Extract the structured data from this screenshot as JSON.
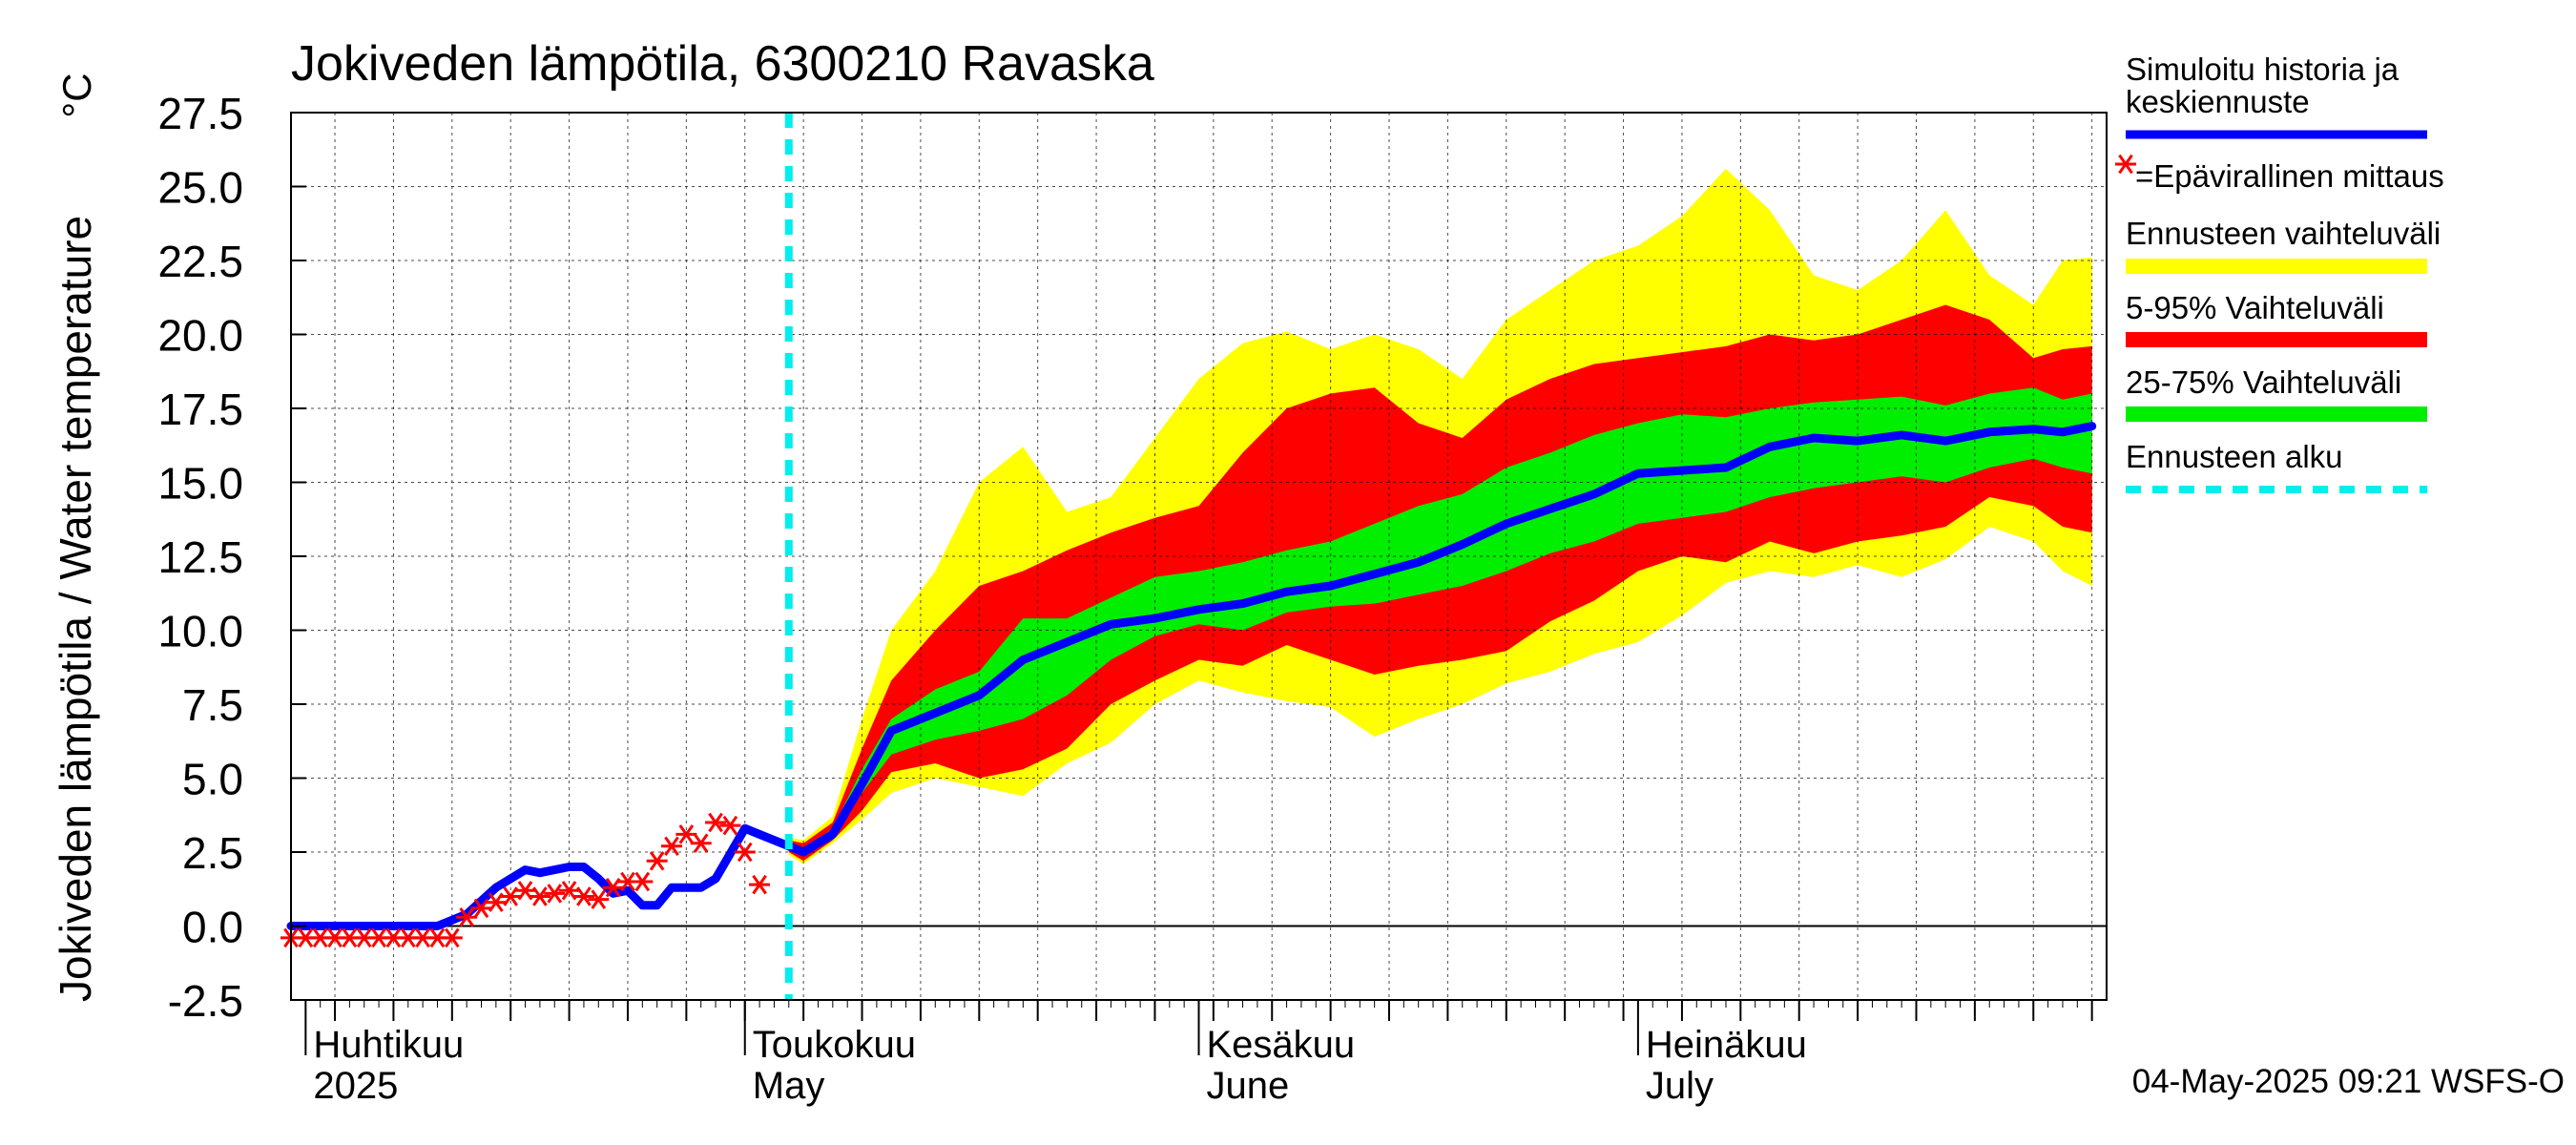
{
  "title": "Jokiveden lämpötila, 6300210 Ravaska",
  "ylabel": "Jokiveden lämpötila / Water temperature",
  "yunit": "°C",
  "timestamp": "04-May-2025 09:21 WSFS-O",
  "months": [
    {
      "fi": "Huhtikuu",
      "en": "2025",
      "date": "2025-04-01"
    },
    {
      "fi": "Toukokuu",
      "en": "May",
      "date": "2025-05-01"
    },
    {
      "fi": "Kesäkuu",
      "en": "June",
      "date": "2025-06-01"
    },
    {
      "fi": "Heinäkuu",
      "en": "July",
      "date": "2025-07-01"
    }
  ],
  "legend": [
    {
      "label": "Simuloitu historia ja keskiennuste",
      "color": "#0000ff",
      "kind": "line"
    },
    {
      "label": "=Epävirallinen mittaus",
      "color": "#ff0000",
      "kind": "star"
    },
    {
      "label": "Ennusteen vaihteluväli",
      "color": "#ffff00",
      "kind": "band"
    },
    {
      "label": "5-95% Vaihteluväli",
      "color": "#ff0000",
      "kind": "band"
    },
    {
      "label": "25-75% Vaihteluväli",
      "color": "#00ee00",
      "kind": "band"
    },
    {
      "label": "Ennusteen alku",
      "color": "#00eeee",
      "kind": "dashed"
    }
  ],
  "chart_data": {
    "type": "line",
    "title": "Jokiveden lämpötila, 6300210 Ravaska",
    "ylabel": "Jokiveden lämpötila / Water temperature °C",
    "ylim": [
      -2.5,
      27.5
    ],
    "yticks": [
      "-2.5",
      "0.0",
      "2.5",
      "5.0",
      "7.5",
      "10.0",
      "12.5",
      "15.0",
      "17.5",
      "20.0",
      "22.5",
      "25.0",
      "27.5"
    ],
    "xlim": [
      "2025-03-31",
      "2025-08-02"
    ],
    "forecast_start": "2025-05-04",
    "grid": true,
    "legend_position": "right",
    "colors": {
      "mean": "#0000ff",
      "obs": "#ff0000",
      "range": "#ffff00",
      "p5_95": "#ff0000",
      "p25_75": "#00ee00",
      "forecast_start": "#00eeee"
    },
    "history": {
      "name": "Simuloitu historia ja keskiennuste",
      "points": [
        [
          "2025-03-31",
          0.0
        ],
        [
          "2025-04-10",
          0.0
        ],
        [
          "2025-04-12",
          0.4
        ],
        [
          "2025-04-14",
          1.3
        ],
        [
          "2025-04-16",
          1.9
        ],
        [
          "2025-04-17",
          1.8
        ],
        [
          "2025-04-19",
          2.0
        ],
        [
          "2025-04-20",
          2.0
        ],
        [
          "2025-04-21",
          1.6
        ],
        [
          "2025-04-22",
          1.1
        ],
        [
          "2025-04-23",
          1.2
        ],
        [
          "2025-04-24",
          0.7
        ],
        [
          "2025-04-25",
          0.7
        ],
        [
          "2025-04-26",
          1.3
        ],
        [
          "2025-04-28",
          1.3
        ],
        [
          "2025-04-29",
          1.6
        ],
        [
          "2025-05-01",
          3.3
        ],
        [
          "2025-05-02",
          3.1
        ],
        [
          "2025-05-04",
          2.7
        ]
      ]
    },
    "forecast": [
      {
        "date": "2025-05-04",
        "min": 2.4,
        "p5": 2.5,
        "p25": 2.6,
        "mean": 2.7,
        "p75": 2.8,
        "p95": 2.9,
        "max": 3.0
      },
      {
        "date": "2025-05-05",
        "min": 2.1,
        "p5": 2.2,
        "p25": 2.4,
        "mean": 2.5,
        "p75": 2.6,
        "p95": 2.8,
        "max": 2.9
      },
      {
        "date": "2025-05-07",
        "min": 2.8,
        "p5": 2.9,
        "p25": 3.0,
        "mean": 3.1,
        "p75": 3.3,
        "p95": 3.5,
        "max": 3.7
      },
      {
        "date": "2025-05-09",
        "min": 3.6,
        "p5": 3.9,
        "p25": 4.5,
        "mean": 4.8,
        "p75": 5.3,
        "p95": 6.0,
        "max": 7.0
      },
      {
        "date": "2025-05-11",
        "min": 4.5,
        "p5": 5.2,
        "p25": 5.8,
        "mean": 6.6,
        "p75": 7.0,
        "p95": 8.3,
        "max": 10.0
      },
      {
        "date": "2025-05-14",
        "min": 5.0,
        "p5": 5.5,
        "p25": 6.3,
        "mean": 7.2,
        "p75": 8.0,
        "p95": 10.0,
        "max": 12.0
      },
      {
        "date": "2025-05-17",
        "min": 4.7,
        "p5": 5.0,
        "p25": 6.6,
        "mean": 7.8,
        "p75": 8.6,
        "p95": 11.5,
        "max": 15.0
      },
      {
        "date": "2025-05-20",
        "min": 4.4,
        "p5": 5.3,
        "p25": 7.0,
        "mean": 9.0,
        "p75": 10.4,
        "p95": 12.0,
        "max": 16.2
      },
      {
        "date": "2025-05-23",
        "min": 5.5,
        "p5": 6.0,
        "p25": 7.8,
        "mean": 9.6,
        "p75": 10.4,
        "p95": 12.7,
        "max": 14.0
      },
      {
        "date": "2025-05-26",
        "min": 6.2,
        "p5": 7.5,
        "p25": 9.0,
        "mean": 10.2,
        "p75": 11.1,
        "p95": 13.3,
        "max": 14.5
      },
      {
        "date": "2025-05-29",
        "min": 7.5,
        "p5": 8.3,
        "p25": 9.8,
        "mean": 10.4,
        "p75": 11.8,
        "p95": 13.8,
        "max": 16.5
      },
      {
        "date": "2025-06-01",
        "min": 8.3,
        "p5": 9.0,
        "p25": 10.2,
        "mean": 10.7,
        "p75": 12.0,
        "p95": 14.2,
        "max": 18.5
      },
      {
        "date": "2025-06-04",
        "min": 7.9,
        "p5": 8.8,
        "p25": 10.0,
        "mean": 10.9,
        "p75": 12.3,
        "p95": 16.0,
        "max": 19.7
      },
      {
        "date": "2025-06-07",
        "min": 7.6,
        "p5": 9.5,
        "p25": 10.6,
        "mean": 11.3,
        "p75": 12.7,
        "p95": 17.5,
        "max": 20.1
      },
      {
        "date": "2025-06-10",
        "min": 7.4,
        "p5": 9.0,
        "p25": 10.8,
        "mean": 11.5,
        "p75": 13.0,
        "p95": 18.0,
        "max": 19.5
      },
      {
        "date": "2025-06-13",
        "min": 6.4,
        "p5": 8.5,
        "p25": 10.9,
        "mean": 11.9,
        "p75": 13.6,
        "p95": 18.2,
        "max": 20.0
      },
      {
        "date": "2025-06-16",
        "min": 7.0,
        "p5": 8.8,
        "p25": 11.2,
        "mean": 12.3,
        "p75": 14.2,
        "p95": 17.0,
        "max": 19.5
      },
      {
        "date": "2025-06-19",
        "min": 7.5,
        "p5": 9.0,
        "p25": 11.5,
        "mean": 12.9,
        "p75": 14.6,
        "p95": 16.5,
        "max": 18.5
      },
      {
        "date": "2025-06-22",
        "min": 8.2,
        "p5": 9.3,
        "p25": 12.0,
        "mean": 13.6,
        "p75": 15.5,
        "p95": 17.8,
        "max": 20.5
      },
      {
        "date": "2025-06-25",
        "min": 8.6,
        "p5": 10.3,
        "p25": 12.6,
        "mean": 14.1,
        "p75": 16.0,
        "p95": 18.5,
        "max": 21.5
      },
      {
        "date": "2025-06-28",
        "min": 9.2,
        "p5": 11.0,
        "p25": 13.0,
        "mean": 14.6,
        "p75": 16.6,
        "p95": 19.0,
        "max": 22.5
      },
      {
        "date": "2025-07-01",
        "min": 9.6,
        "p5": 12.0,
        "p25": 13.6,
        "mean": 15.3,
        "p75": 17.0,
        "p95": 19.2,
        "max": 23.0
      },
      {
        "date": "2025-07-04",
        "min": 10.5,
        "p5": 12.5,
        "p25": 13.8,
        "mean": 15.4,
        "p75": 17.3,
        "p95": 19.4,
        "max": 24.0
      },
      {
        "date": "2025-07-07",
        "min": 11.6,
        "p5": 12.3,
        "p25": 14.0,
        "mean": 15.5,
        "p75": 17.2,
        "p95": 19.6,
        "max": 25.6
      },
      {
        "date": "2025-07-10",
        "min": 12.0,
        "p5": 13.0,
        "p25": 14.5,
        "mean": 16.2,
        "p75": 17.5,
        "p95": 20.0,
        "max": 24.2
      },
      {
        "date": "2025-07-13",
        "min": 11.8,
        "p5": 12.6,
        "p25": 14.8,
        "mean": 16.5,
        "p75": 17.7,
        "p95": 19.8,
        "max": 22.0
      },
      {
        "date": "2025-07-16",
        "min": 12.2,
        "p5": 13.0,
        "p25": 15.0,
        "mean": 16.4,
        "p75": 17.8,
        "p95": 20.0,
        "max": 21.5
      },
      {
        "date": "2025-07-19",
        "min": 11.8,
        "p5": 13.2,
        "p25": 15.2,
        "mean": 16.6,
        "p75": 17.9,
        "p95": 20.5,
        "max": 22.5
      },
      {
        "date": "2025-07-22",
        "min": 12.4,
        "p5": 13.5,
        "p25": 15.0,
        "mean": 16.4,
        "p75": 17.6,
        "p95": 21.0,
        "max": 24.2
      },
      {
        "date": "2025-07-25",
        "min": 13.5,
        "p5": 14.5,
        "p25": 15.5,
        "mean": 16.7,
        "p75": 18.0,
        "p95": 20.5,
        "max": 22.0
      },
      {
        "date": "2025-07-28",
        "min": 13.0,
        "p5": 14.2,
        "p25": 15.8,
        "mean": 16.8,
        "p75": 18.2,
        "p95": 19.2,
        "max": 21.0
      },
      {
        "date": "2025-07-30",
        "min": 12.0,
        "p5": 13.5,
        "p25": 15.5,
        "mean": 16.7,
        "p75": 17.8,
        "p95": 19.5,
        "max": 22.5
      },
      {
        "date": "2025-08-01",
        "min": 11.5,
        "p5": 13.3,
        "p25": 15.3,
        "mean": 16.9,
        "p75": 18.0,
        "p95": 19.6,
        "max": 22.6
      }
    ],
    "observations": [
      [
        "2025-03-31",
        -0.4
      ],
      [
        "2025-04-01",
        -0.4
      ],
      [
        "2025-04-02",
        -0.4
      ],
      [
        "2025-04-03",
        -0.4
      ],
      [
        "2025-04-04",
        -0.4
      ],
      [
        "2025-04-05",
        -0.4
      ],
      [
        "2025-04-06",
        -0.4
      ],
      [
        "2025-04-07",
        -0.4
      ],
      [
        "2025-04-08",
        -0.4
      ],
      [
        "2025-04-09",
        -0.4
      ],
      [
        "2025-04-10",
        -0.4
      ],
      [
        "2025-04-11",
        -0.4
      ],
      [
        "2025-04-12",
        0.3
      ],
      [
        "2025-04-13",
        0.6
      ],
      [
        "2025-04-14",
        0.8
      ],
      [
        "2025-04-15",
        1.0
      ],
      [
        "2025-04-16",
        1.2
      ],
      [
        "2025-04-17",
        1.0
      ],
      [
        "2025-04-18",
        1.1
      ],
      [
        "2025-04-19",
        1.2
      ],
      [
        "2025-04-20",
        1.0
      ],
      [
        "2025-04-21",
        0.9
      ],
      [
        "2025-04-22",
        1.3
      ],
      [
        "2025-04-23",
        1.5
      ],
      [
        "2025-04-24",
        1.5
      ],
      [
        "2025-04-25",
        2.2
      ],
      [
        "2025-04-26",
        2.7
      ],
      [
        "2025-04-27",
        3.1
      ],
      [
        "2025-04-28",
        2.8
      ],
      [
        "2025-04-29",
        3.5
      ],
      [
        "2025-04-30",
        3.4
      ],
      [
        "2025-05-01",
        2.5
      ],
      [
        "2025-05-02",
        1.4
      ]
    ]
  }
}
